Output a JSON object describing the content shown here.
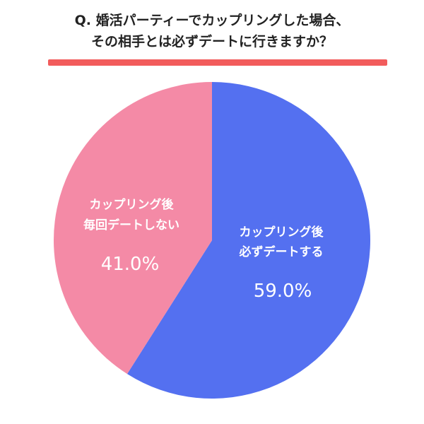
{
  "header": {
    "title_line1": "Q. 婚活パーティーでカップリングした場合、",
    "title_line2": "その相手とは必ずデートに行きますか？"
  },
  "colors": {
    "rule": "#F25C5C",
    "blue": "#5470F0",
    "pink": "#F48AA6"
  },
  "chart_data": {
    "type": "pie",
    "title": "Q. 婚活パーティーでカップリングした場合、その相手とは必ずデートに行きますか？",
    "slices": [
      {
        "label_line1": "カップリング後",
        "label_line2": "必ずデートする",
        "value": 59.0,
        "value_text": "59.0%",
        "color": "#5470F0"
      },
      {
        "label_line1": "カップリング後",
        "label_line2": "毎回デートしない",
        "value": 41.0,
        "value_text": "41.0%",
        "color": "#F48AA6"
      }
    ]
  }
}
